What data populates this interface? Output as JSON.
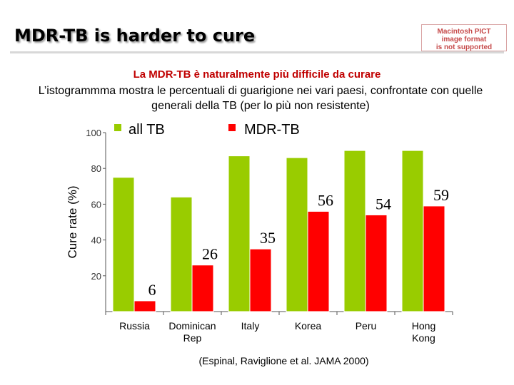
{
  "header": {
    "title": "MDR-TB is harder to cure",
    "pict_notice": [
      "Macintosh PICT",
      "image format",
      "is not supported"
    ]
  },
  "subtitle": "La MDR-TB è naturalmente più difficile da curare",
  "description": "L’istogrammma mostra le percentuali di guarigione nei vari paesi, confrontate con quelle generali della TB (per lo più non resistente)",
  "source": "(Espinal, Raviglione et al. JAMA 2000)",
  "colors": {
    "all_tb": "#99cc00",
    "mdr_tb": "#ff0000"
  },
  "chart_data": {
    "type": "bar",
    "title": "",
    "xlabel": "",
    "ylabel": "Cure rate (%)",
    "ylim": [
      0,
      100
    ],
    "yticks": [
      20,
      40,
      60,
      80,
      100
    ],
    "categories": [
      "Russia",
      "Dominican Rep",
      "Italy",
      "Korea",
      "Peru",
      "Hong Kong"
    ],
    "series": [
      {
        "name": "all TB",
        "values": [
          75,
          64,
          87,
          86,
          90,
          90
        ]
      },
      {
        "name": "MDR-TB",
        "values": [
          6,
          26,
          35,
          56,
          54,
          59
        ]
      }
    ],
    "data_labels": [
      "6",
      "26",
      "35",
      "56",
      "54",
      "59"
    ],
    "grid": false,
    "legend": "top"
  }
}
